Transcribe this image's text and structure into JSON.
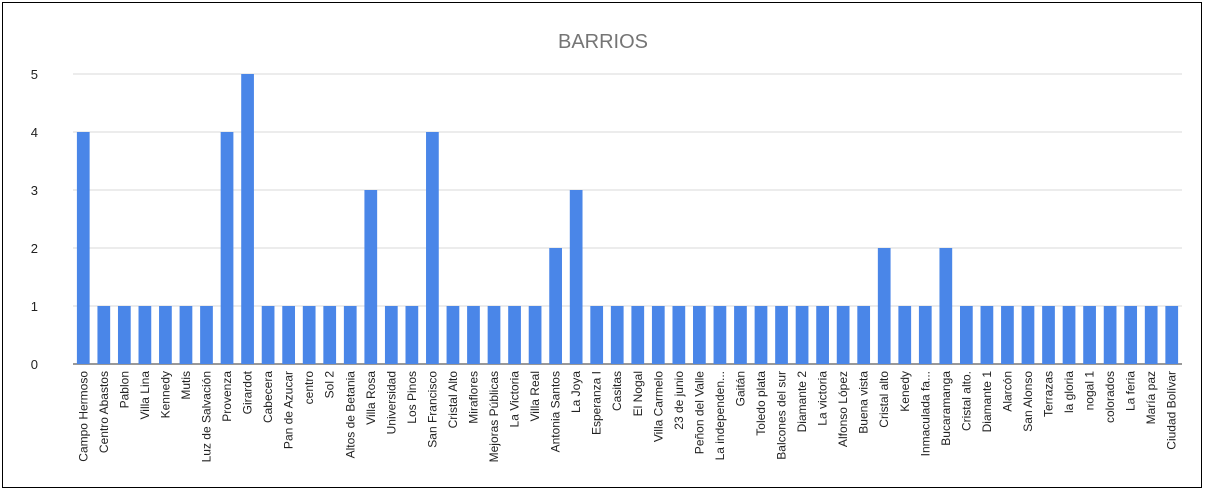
{
  "chart_data": {
    "type": "bar",
    "title": "BARRIOS",
    "xlabel": "",
    "ylabel": "",
    "ylim": [
      0,
      5
    ],
    "yticks": [
      0,
      1,
      2,
      3,
      4,
      5
    ],
    "grid": true,
    "bar_color": "#4a86e8",
    "categories": [
      "Campo Hermoso",
      "Centro Abastos",
      "Pablon",
      "Villa Lina",
      "Kennedy",
      "Mutis",
      "Luz de Salvación",
      "Provenza",
      "Girardot",
      "Cabecera",
      "Pan de Azucar",
      "centro",
      "Sol 2",
      "Altos de Betania",
      "Villa Rosa",
      "Universidad",
      "Los Pinos",
      "San Francisco",
      "Cristal Alto",
      "Miraflores",
      "Mejoras Públicas",
      "La Victoria",
      "Villa Real",
      "Antonia Santos",
      "La Joya",
      "Esperanza I",
      "Casitas",
      "El Nogal",
      "Villa Carmelo",
      "23 de junio",
      "Peñon del Valle",
      "La independen...",
      "Gaitán",
      "Toledo plata",
      "Balcones del sur",
      "Diamante 2",
      "La victoria",
      "Alfonso López",
      "Buena vista",
      "Cristal alto",
      "Kenedy",
      "Inmaculada fa...",
      "Bucaramanga",
      "Cristal alto.",
      "Diamante 1",
      "Alarcón",
      "San Alonso",
      "Terrazas",
      "la gloria",
      "nogal 1",
      "colorados",
      "La feria",
      "María paz",
      "Ciudad Bolívar"
    ],
    "values": [
      4,
      1,
      1,
      1,
      1,
      1,
      1,
      4,
      5,
      1,
      1,
      1,
      1,
      1,
      3,
      1,
      1,
      4,
      1,
      1,
      1,
      1,
      1,
      2,
      3,
      1,
      1,
      1,
      1,
      1,
      1,
      1,
      1,
      1,
      1,
      1,
      1,
      1,
      1,
      2,
      1,
      1,
      2,
      1,
      1,
      1,
      1,
      1,
      1,
      1,
      1,
      1,
      1,
      1
    ]
  }
}
